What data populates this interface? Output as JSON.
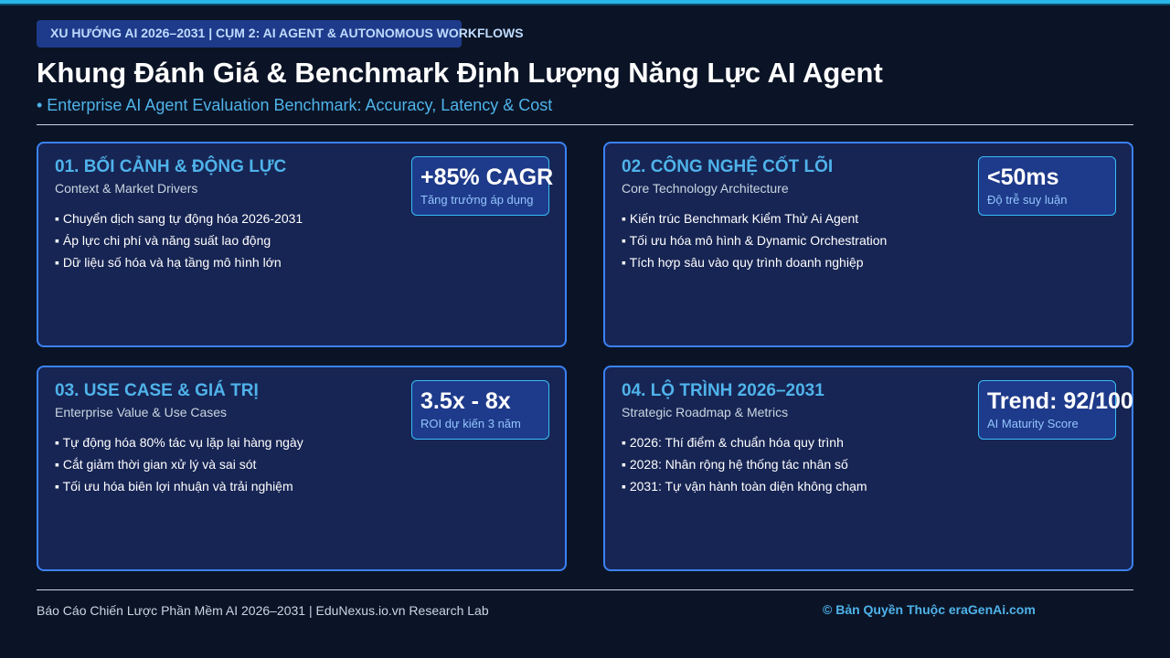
{
  "header": {
    "tag": "XU HƯỚNG AI 2026–2031 | CỤM 2: AI AGENT & AUTONOMOUS WORKFLOWS",
    "title": "Khung Đánh Giá & Benchmark Định Lượng Năng Lực AI Agent",
    "subtitle": "• Enterprise AI Agent Evaluation Benchmark: Accuracy, Latency & Cost"
  },
  "cards": [
    {
      "title": "01. BỐI CẢNH & ĐỘNG LỰC",
      "subtitle": "Context & Market Drivers",
      "metric": "+85% CAGR",
      "metric_label": "Tăng trưởng áp dụng",
      "bullets": [
        "▪ Chuyển dịch sang tự động hóa 2026-2031",
        "▪ Áp lực chi phí và năng suất lao động",
        "▪ Dữ liệu số hóa và hạ tầng mô hình lớn"
      ]
    },
    {
      "title": "02. CÔNG NGHỆ CỐT LÕI",
      "subtitle": "Core Technology Architecture",
      "metric": "<50ms",
      "metric_label": "Độ trễ suy luận",
      "bullets": [
        "▪ Kiến trúc Benchmark Kiểm Thử Ai Agent",
        "▪ Tối ưu hóa mô hình & Dynamic Orchestration",
        "▪ Tích hợp sâu vào quy trình doanh nghiệp"
      ]
    },
    {
      "title": "03. USE CASE & GIÁ TRỊ",
      "subtitle": "Enterprise Value & Use Cases",
      "metric": "3.5x - 8x",
      "metric_label": "ROI dự kiến 3 năm",
      "bullets": [
        "▪ Tự động hóa 80% tác vụ lặp lại hàng ngày",
        "▪ Cắt giảm thời gian xử lý và sai sót",
        "▪ Tối ưu hóa biên lợi nhuận và trải nghiệm"
      ]
    },
    {
      "title": "04. LỘ TRÌNH 2026–2031",
      "subtitle": "Strategic Roadmap & Metrics",
      "metric": "Trend: 92/100",
      "metric_label": "AI Maturity Score",
      "bullets": [
        "▪ 2026: Thí điểm & chuẩn hóa quy trình",
        "▪ 2028: Nhân rộng hệ thống tác nhân số",
        "▪ 2031: Tự vận hành toàn diện không chạm"
      ]
    }
  ],
  "footer": {
    "left": "Báo Cáo Chiến Lược Phần Mềm AI 2026–2031 | EduNexus.io.vn Research Lab",
    "right": "© Bản Quyền Thuộc eraGenAi.com"
  }
}
